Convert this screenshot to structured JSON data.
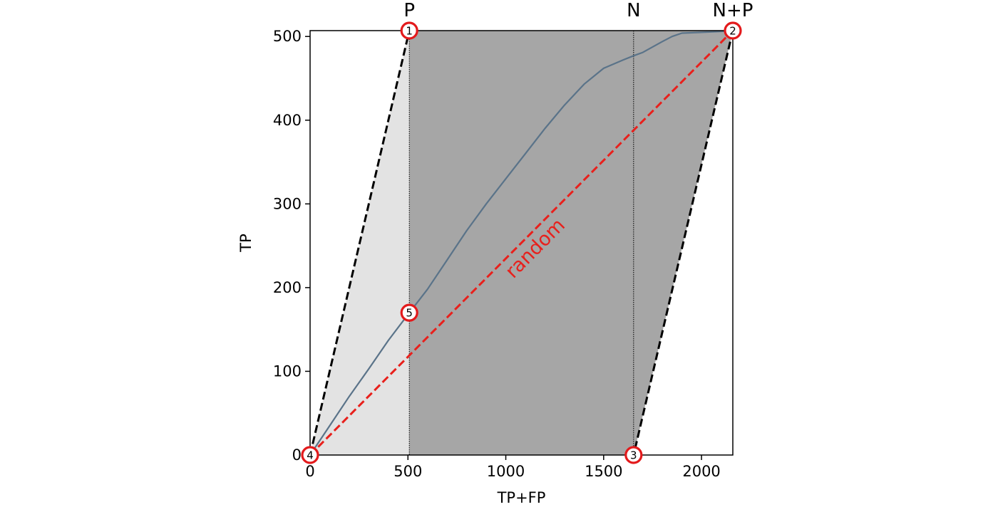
{
  "chart_data": {
    "type": "line",
    "title": "",
    "xlabel": "TP+FP",
    "ylabel": "TP",
    "xlim": [
      0,
      2160
    ],
    "ylim": [
      0,
      507
    ],
    "x_ticks": [
      0,
      500,
      1000,
      1500,
      2000
    ],
    "y_ticks": [
      0,
      100,
      200,
      300,
      400,
      500
    ],
    "P": 507,
    "N": 1653,
    "vline_labels": [
      "P",
      "N",
      "N+P"
    ],
    "regions": {
      "light_fill_color": "#e3e3e3",
      "dark_fill_color": "#a6a6a6"
    },
    "boundary": {
      "color": "#000000",
      "style": "dashed",
      "points": [
        [
          0,
          0
        ],
        [
          507,
          507
        ],
        [
          2160,
          507
        ],
        [
          1653,
          0
        ],
        [
          0,
          0
        ]
      ]
    },
    "random": {
      "label": "random",
      "color": "#e8201c",
      "style": "dashed",
      "x": [
        0,
        2160
      ],
      "y": [
        0,
        507
      ]
    },
    "series": [
      {
        "color": "#5a7389",
        "x": [
          0,
          100,
          200,
          300,
          400,
          507,
          600,
          700,
          800,
          900,
          1000,
          1100,
          1200,
          1300,
          1400,
          1500,
          1600,
          1653,
          1700,
          1800,
          1850,
          1900,
          2000,
          2100,
          2160
        ],
        "y": [
          0,
          35,
          70,
          103,
          137,
          170,
          198,
          233,
          268,
          300,
          330,
          360,
          390,
          418,
          443,
          462,
          472,
          477,
          481,
          494,
          500,
          504,
          505,
          506,
          507
        ]
      }
    ],
    "markers": [
      {
        "label": "1",
        "x": 507,
        "y": 507
      },
      {
        "label": "2",
        "x": 2160,
        "y": 507
      },
      {
        "label": "3",
        "x": 1653,
        "y": 0
      },
      {
        "label": "4",
        "x": 0,
        "y": 0
      },
      {
        "label": "5",
        "x": 507,
        "y": 170
      }
    ],
    "marker_color": "#e31a1c",
    "grid": false,
    "legend": "none"
  }
}
